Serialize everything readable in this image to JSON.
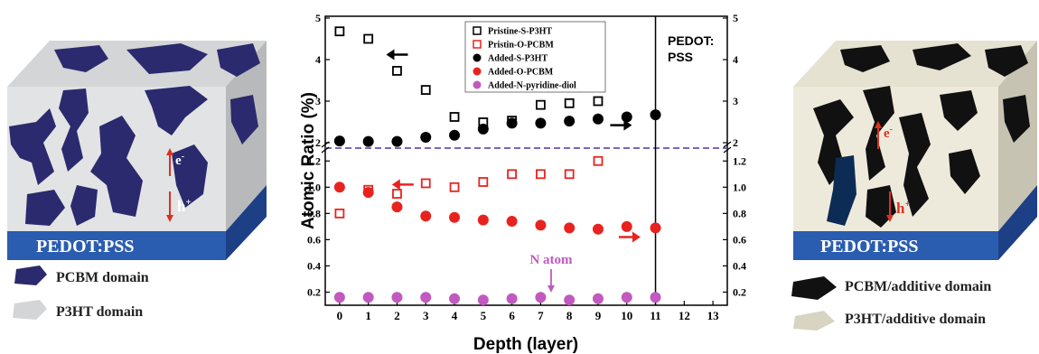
{
  "left_schematic": {
    "electrode_label": "PEDOT:PSS",
    "electron_label": "e",
    "electron_sup": "-",
    "hole_label": "h",
    "hole_sup": "+",
    "legend": [
      "PCBM domain",
      "P3HT domain"
    ],
    "colors": {
      "pcbm": "#2b2a6e",
      "p3ht": "#d9dadb",
      "electrode": "#2a5db0",
      "carrier": "#e03020"
    }
  },
  "right_schematic": {
    "electrode_label": "PEDOT:PSS",
    "electron_label": "e",
    "electron_sup": "-",
    "hole_label": "h",
    "hole_sup": "+",
    "legend": [
      "PCBM/additive domain",
      "P3HT/additive domain"
    ],
    "colors": {
      "pcbm": "#111111",
      "p3ht": "#e8e4d4",
      "electrode": "#2a5db0",
      "carrier": "#e03020"
    }
  },
  "chart_data": {
    "type": "scatter",
    "xlabel": "Depth (layer)",
    "ylabel": "Atomic Ratio (%)",
    "x_ticks": [
      0,
      1,
      2,
      3,
      4,
      5,
      6,
      7,
      8,
      9,
      10,
      11,
      12,
      13
    ],
    "xlim": [
      -0.5,
      13.5
    ],
    "upper_axis": {
      "ylim": [
        2,
        5
      ],
      "left_ticks": [
        "2",
        "3",
        "4",
        "5"
      ],
      "right_ticks": [
        "2",
        "3",
        "4",
        "5"
      ]
    },
    "lower_axis": {
      "ylim": [
        0.1,
        1.25
      ],
      "left_ticks": [
        "0.2",
        "0.4",
        "0.6",
        "0.8",
        "1.0",
        "1.2"
      ],
      "right_ticks": [
        "0.2",
        "0.4",
        "0.6",
        "0.8",
        "1.0",
        "1.2"
      ]
    },
    "vertical_line_x": 11,
    "region_label": [
      "PEDOT:",
      "PSS"
    ],
    "annotation": "N atom",
    "series": [
      {
        "name": "Pristine-S-P3HT",
        "panel": "upper",
        "marker": "open-square",
        "color": "#000000",
        "x": [
          0,
          1,
          2,
          3,
          4,
          5,
          6,
          7,
          8,
          9
        ],
        "y": [
          4.68,
          4.5,
          3.73,
          3.27,
          2.62,
          2.49,
          2.53,
          2.91,
          2.95,
          3.0
        ]
      },
      {
        "name": "Pristin-O-PCBM",
        "panel": "lower",
        "marker": "open-square",
        "color": "#e8231f",
        "x": [
          0,
          1,
          2,
          3,
          4,
          5,
          6,
          7,
          8,
          9
        ],
        "y": [
          0.8,
          0.98,
          0.95,
          1.03,
          1.0,
          1.04,
          1.1,
          1.1,
          1.1,
          1.2
        ]
      },
      {
        "name": "Added-S-P3HT",
        "panel": "upper",
        "marker": "filled-circle",
        "color": "#000000",
        "x": [
          0,
          1,
          2,
          3,
          4,
          5,
          6,
          7,
          8,
          9,
          10,
          11
        ],
        "y": [
          2.04,
          2.03,
          2.03,
          2.13,
          2.18,
          2.33,
          2.47,
          2.47,
          2.52,
          2.57,
          2.62,
          2.67
        ]
      },
      {
        "name": "Added-O-PCBM",
        "panel": "lower",
        "marker": "filled-circle",
        "color": "#e8231f",
        "x": [
          0,
          1,
          2,
          3,
          4,
          5,
          6,
          7,
          8,
          9,
          10,
          11
        ],
        "y": [
          1.0,
          0.96,
          0.85,
          0.78,
          0.77,
          0.75,
          0.74,
          0.71,
          0.69,
          0.68,
          0.7,
          0.69
        ]
      },
      {
        "name": "Added-N-pyridine-diol",
        "panel": "lower",
        "marker": "filled-circle",
        "color": "#c159c0",
        "x": [
          0,
          1,
          2,
          3,
          4,
          5,
          6,
          7,
          8,
          9,
          10,
          11
        ],
        "y": [
          0.16,
          0.16,
          0.16,
          0.16,
          0.15,
          0.14,
          0.15,
          0.16,
          0.14,
          0.15,
          0.16,
          0.16
        ]
      }
    ],
    "arrows": [
      {
        "panel": "upper",
        "direction": "left",
        "color": "#000000",
        "x": 2.0,
        "y": 4.12
      },
      {
        "panel": "lower",
        "direction": "left",
        "color": "#e8231f",
        "x": 2.2,
        "y": 1.02
      },
      {
        "panel": "upper",
        "direction": "right",
        "color": "#000000",
        "x": 9.8,
        "y": 2.42
      },
      {
        "panel": "lower",
        "direction": "right",
        "color": "#e8231f",
        "x": 10.1,
        "y": 0.62
      }
    ]
  }
}
